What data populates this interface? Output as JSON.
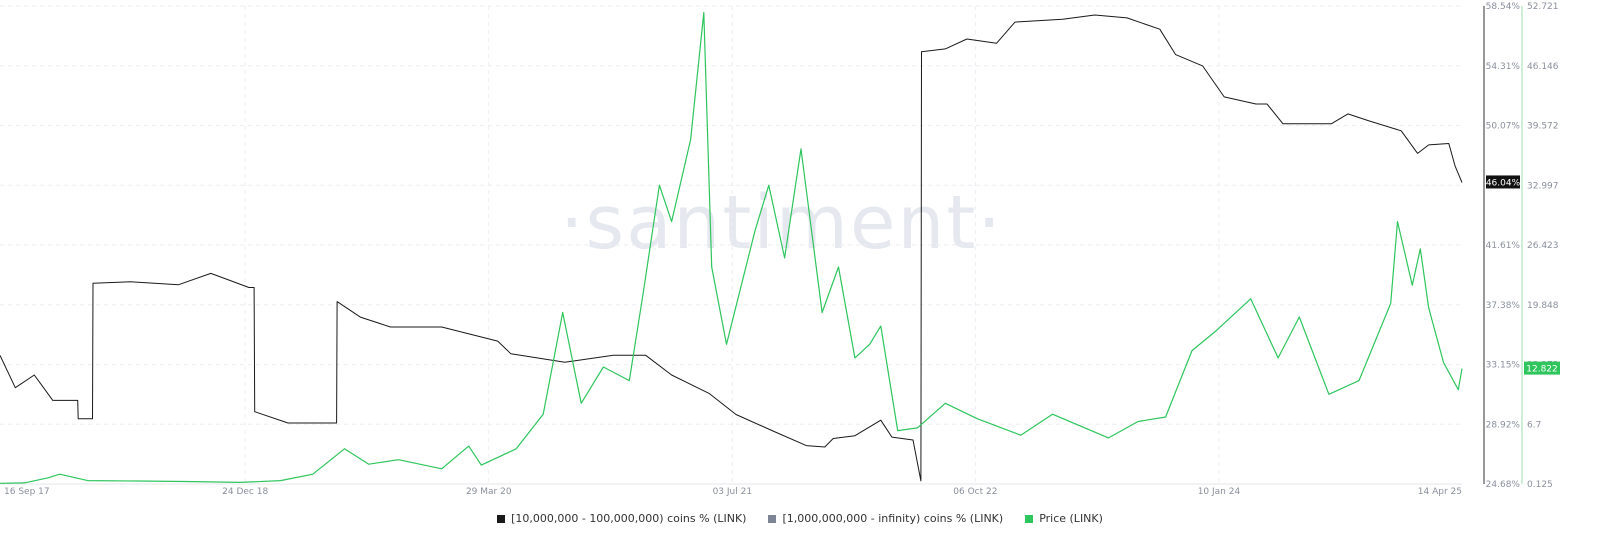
{
  "watermark": "·santiment·",
  "chart_data": {
    "type": "line",
    "x_ticks": [
      "16 Sep 17",
      "24 Dec 18",
      "29 Mar 20",
      "03 Jul 21",
      "06 Oct 22",
      "10 Jan 24",
      "14 Apr 25"
    ],
    "x_range": [
      "2017-09-16",
      "2025-04-14"
    ],
    "left_axis": {
      "ticks": [
        "58.54%",
        "54.31%",
        "50.07%",
        "45.84%",
        "41.61%",
        "37.38%",
        "33.15%",
        "28.92%",
        "24.68%"
      ],
      "range": [
        24.68,
        58.54
      ],
      "current_label": "46.04%"
    },
    "right_axis": {
      "ticks": [
        "52.721",
        "46.146",
        "39.572",
        "32.997",
        "26.423",
        "19.848",
        "13.273",
        "6.7",
        "0.125"
      ],
      "range": [
        0.125,
        52.721
      ],
      "current_label": "12.822"
    },
    "grid": true,
    "legend_position": "bottom",
    "series": [
      {
        "name": "[10,000,000 - 100,000,000) coins % (LINK)",
        "color": "#1a1a1a",
        "axis": "left",
        "points": [
          [
            "2017-09-16",
            33.8
          ],
          [
            "2017-10-15",
            31.5
          ],
          [
            "2017-11-20",
            32.4
          ],
          [
            "2017-12-25",
            30.6
          ],
          [
            "2018-01-28",
            30.6
          ],
          [
            "2018-02-10",
            30.6
          ],
          [
            "2018-02-11",
            29.3
          ],
          [
            "2018-03-10",
            29.3
          ],
          [
            "2018-03-11",
            38.9
          ],
          [
            "2018-05-20",
            39.0
          ],
          [
            "2018-08-20",
            38.8
          ],
          [
            "2018-10-20",
            39.6
          ],
          [
            "2018-11-25",
            39.1
          ],
          [
            "2018-12-31",
            38.6
          ],
          [
            "2019-01-10",
            38.6
          ],
          [
            "2019-01-11",
            29.8
          ],
          [
            "2019-03-15",
            29.0
          ],
          [
            "2019-06-10",
            29.0
          ],
          [
            "2019-06-15",
            29.0
          ],
          [
            "2019-06-16",
            37.6
          ],
          [
            "2019-07-30",
            36.5
          ],
          [
            "2019-09-25",
            35.8
          ],
          [
            "2019-12-31",
            35.8
          ],
          [
            "2020-04-15",
            34.8
          ],
          [
            "2020-05-10",
            33.9
          ],
          [
            "2020-08-20",
            33.3
          ],
          [
            "2020-11-20",
            33.8
          ],
          [
            "2021-01-20",
            33.8
          ],
          [
            "2021-03-10",
            32.4
          ],
          [
            "2021-05-20",
            31.1
          ],
          [
            "2021-07-10",
            29.6
          ],
          [
            "2021-09-20",
            28.4
          ],
          [
            "2021-11-20",
            27.4
          ],
          [
            "2021-12-25",
            27.3
          ],
          [
            "2022-01-10",
            27.9
          ],
          [
            "2022-02-20",
            28.1
          ],
          [
            "2022-04-10",
            29.2
          ],
          [
            "2022-05-01",
            28.0
          ],
          [
            "2022-06-10",
            27.8
          ],
          [
            "2022-06-25",
            24.9
          ],
          [
            "2022-06-26",
            55.3
          ],
          [
            "2022-08-10",
            55.5
          ],
          [
            "2022-09-20",
            56.2
          ],
          [
            "2022-11-15",
            55.9
          ],
          [
            "2022-12-20",
            57.4
          ],
          [
            "2023-03-20",
            57.6
          ],
          [
            "2023-05-20",
            57.9
          ],
          [
            "2023-07-20",
            57.7
          ],
          [
            "2023-09-20",
            56.9
          ],
          [
            "2023-10-20",
            55.1
          ],
          [
            "2023-12-10",
            54.3
          ],
          [
            "2024-01-20",
            52.1
          ],
          [
            "2024-03-20",
            51.6
          ],
          [
            "2024-04-10",
            51.6
          ],
          [
            "2024-05-10",
            50.2
          ],
          [
            "2024-08-10",
            50.2
          ],
          [
            "2024-09-10",
            50.9
          ],
          [
            "2024-10-20",
            50.4
          ],
          [
            "2024-12-20",
            49.7
          ],
          [
            "2025-01-20",
            48.1
          ],
          [
            "2025-02-10",
            48.7
          ],
          [
            "2025-03-20",
            48.8
          ],
          [
            "2025-04-01",
            47.2
          ],
          [
            "2025-04-14",
            46.04
          ]
        ]
      },
      {
        "name": "[1,000,000,000 - infinity) coins % (LINK)",
        "color": "#7d8595",
        "axis": "left",
        "points": []
      },
      {
        "name": "Price (LINK)",
        "color": "#2ec55c",
        "axis": "right",
        "points": [
          [
            "2017-09-16",
            0.2
          ],
          [
            "2017-11-01",
            0.25
          ],
          [
            "2017-12-15",
            0.8
          ],
          [
            "2018-01-07",
            1.2
          ],
          [
            "2018-03-01",
            0.5
          ],
          [
            "2018-06-01",
            0.45
          ],
          [
            "2018-09-01",
            0.4
          ],
          [
            "2018-12-15",
            0.3
          ],
          [
            "2019-03-01",
            0.5
          ],
          [
            "2019-05-01",
            1.2
          ],
          [
            "2019-06-30",
            4.0
          ],
          [
            "2019-08-15",
            2.3
          ],
          [
            "2019-10-10",
            2.8
          ],
          [
            "2019-12-31",
            1.8
          ],
          [
            "2020-02-20",
            4.3
          ],
          [
            "2020-03-15",
            2.2
          ],
          [
            "2020-05-20",
            4.0
          ],
          [
            "2020-07-10",
            7.8
          ],
          [
            "2020-08-16",
            19.0
          ],
          [
            "2020-09-20",
            9.0
          ],
          [
            "2020-11-01",
            13.0
          ],
          [
            "2020-12-20",
            11.5
          ],
          [
            "2021-01-15",
            21.0
          ],
          [
            "2021-02-15",
            33.0
          ],
          [
            "2021-03-10",
            29.0
          ],
          [
            "2021-04-15",
            38.0
          ],
          [
            "2021-05-10",
            52.0
          ],
          [
            "2021-05-25",
            24.0
          ],
          [
            "2021-06-22",
            15.5
          ],
          [
            "2021-08-15",
            28.0
          ],
          [
            "2021-09-10",
            33.0
          ],
          [
            "2021-10-10",
            25.0
          ],
          [
            "2021-11-10",
            37.0
          ],
          [
            "2021-12-20",
            19.0
          ],
          [
            "2022-01-20",
            24.0
          ],
          [
            "2022-02-20",
            14.0
          ],
          [
            "2022-03-20",
            15.5
          ],
          [
            "2022-04-10",
            17.5
          ],
          [
            "2022-05-12",
            6.0
          ],
          [
            "2022-06-18",
            6.3
          ],
          [
            "2022-08-10",
            9.0
          ],
          [
            "2022-10-10",
            7.3
          ],
          [
            "2022-12-31",
            5.5
          ],
          [
            "2023-03-01",
            7.8
          ],
          [
            "2023-06-15",
            5.2
          ],
          [
            "2023-08-10",
            7.0
          ],
          [
            "2023-10-01",
            7.5
          ],
          [
            "2023-11-20",
            14.8
          ],
          [
            "2024-01-05",
            17.0
          ],
          [
            "2024-03-10",
            20.5
          ],
          [
            "2024-05-01",
            14.0
          ],
          [
            "2024-06-10",
            18.5
          ],
          [
            "2024-08-05",
            10.0
          ],
          [
            "2024-10-01",
            11.5
          ],
          [
            "2024-11-30",
            20.0
          ],
          [
            "2024-12-13",
            29.0
          ],
          [
            "2025-01-10",
            22.0
          ],
          [
            "2025-01-25",
            26.0
          ],
          [
            "2025-02-10",
            19.5
          ],
          [
            "2025-03-10",
            13.5
          ],
          [
            "2025-04-07",
            10.5
          ],
          [
            "2025-04-14",
            12.822
          ]
        ]
      }
    ]
  }
}
